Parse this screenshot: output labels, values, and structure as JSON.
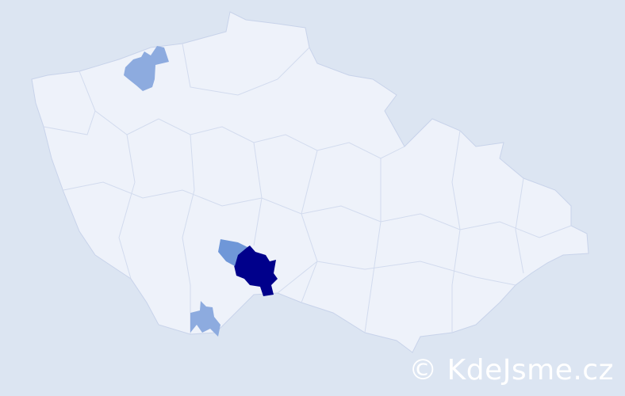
{
  "map": {
    "base_fill": "#eef2fa",
    "border_color": "#c8d3ea",
    "background": "#dce5f2",
    "highlighted_regions": [
      {
        "level": "high",
        "color": "#00008b"
      },
      {
        "level": "medium",
        "color": "#6f97d8"
      },
      {
        "level": "low",
        "color": "#8dabdf"
      },
      {
        "level": "low",
        "color": "#8dabdf"
      }
    ]
  },
  "watermark": {
    "text": "© KdeJsme.cz"
  }
}
